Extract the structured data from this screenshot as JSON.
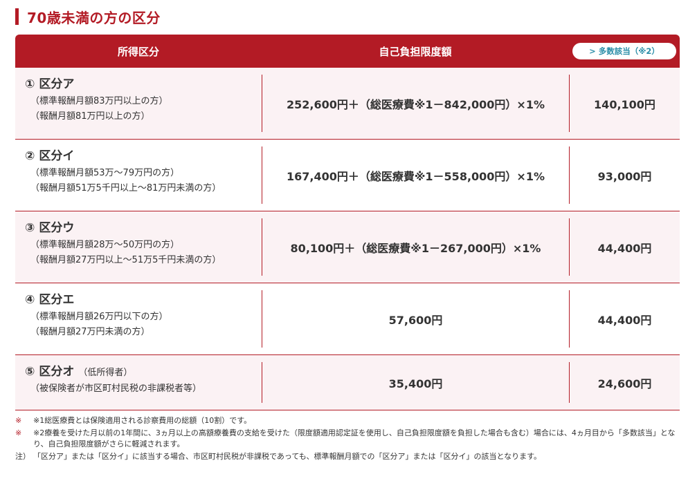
{
  "section_title": "70歳未満の方の区分",
  "table": {
    "header": {
      "col1": "所得区分",
      "col2": "自己負担限度額",
      "badge": "> 多数該当（※2）"
    },
    "rows": [
      {
        "num": "①",
        "title": "区分ア",
        "extra": "",
        "notes": [
          "（標準報酬月額83万円以上の方）",
          "（報酬月額81万円以上の方）"
        ],
        "formula": "252,600円＋（総医療費※1－842,000円）×1%",
        "multi": "140,100円"
      },
      {
        "num": "②",
        "title": "区分イ",
        "extra": "",
        "notes": [
          "（標準報酬月額53万～79万円の方）",
          "（報酬月額51万5千円以上～81万円未満の方）"
        ],
        "formula": "167,400円＋（総医療費※1－558,000円）×1%",
        "multi": "93,000円"
      },
      {
        "num": "③",
        "title": "区分ウ",
        "extra": "",
        "notes": [
          "（標準報酬月額28万～50万円の方）",
          "（報酬月額27万円以上～51万5千円未満の方）"
        ],
        "formula": "80,100円＋（総医療費※1－267,000円）×1%",
        "multi": "44,400円"
      },
      {
        "num": "④",
        "title": "区分エ",
        "extra": "",
        "notes": [
          "（標準報酬月額26万円以下の方）",
          "（報酬月額27万円未満の方）"
        ],
        "formula": "57,600円",
        "multi": "44,400円"
      },
      {
        "num": "⑤",
        "title": "区分オ",
        "extra": "（低所得者）",
        "notes": [
          "（被保険者が市区町村民税の非課税者等）"
        ],
        "formula": "35,400円",
        "multi": "24,600円"
      }
    ]
  },
  "footnotes": [
    {
      "mark": "※",
      "text": "※1総医療費とは保険適用される診察費用の総額（10割）です。"
    },
    {
      "mark": "※",
      "text": "※2療養を受けた月以前の1年間に、3ヵ月以上の高額療養費の支給を受けた（限度額適用認定証を使用し、自己負担限度額を負担した場合も含む）場合には、4ヵ月目から「多数該当」となり、自己負担限度額がさらに軽減されます。"
    },
    {
      "mark": "注）",
      "text": "「区分ア」または「区分イ」に該当する場合、市区町村民税が非課税であっても、標準報酬月額での「区分ア」または「区分イ」の該当となります。"
    }
  ],
  "colors": {
    "accent": "#b31b25",
    "row_tint": "#fbf2f4",
    "badge_text": "#2a8ea8"
  }
}
